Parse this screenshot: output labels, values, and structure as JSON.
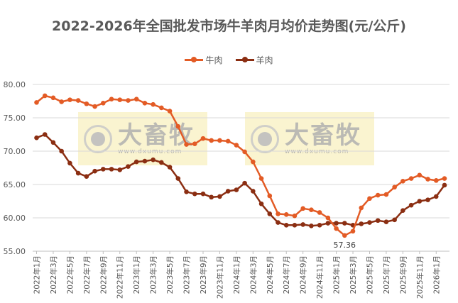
{
  "chart_data": {
    "type": "line",
    "title": "2022-2026年全国批发市场牛羊肉月均价走势图(元/公斤)",
    "xlabel": "",
    "ylabel": "",
    "ylim": [
      55,
      80
    ],
    "yticks": [
      "80.00",
      "75.00",
      "70.00",
      "65.00",
      "60.00",
      "55.00"
    ],
    "grid": true,
    "legend_position": "top",
    "x": [
      "2022年1月",
      "2022年2月",
      "2022年3月",
      "2022年4月",
      "2022年5月",
      "2022年6月",
      "2022年7月",
      "2022年8月",
      "2022年9月",
      "2022年10月",
      "2022年11月",
      "2022年12月",
      "2023年1月",
      "2023年2月",
      "2023年3月",
      "2023年4月",
      "2023年5月",
      "2023年6月",
      "2023年7月",
      "2023年8月",
      "2023年9月",
      "2023年10月",
      "2023年11月",
      "2023年12月",
      "2024年1月",
      "2024年2月",
      "2024年3月",
      "2024年4月",
      "2024年5月",
      "2024年6月",
      "2024年7月",
      "2024年8月",
      "2024年9月",
      "2024年10月",
      "2024年11月",
      "2024年12月",
      "2025年1月",
      "2025年2月",
      "2025年3月",
      "2025年4月",
      "2025年5月",
      "2025年6月",
      "2025年7月",
      "2025年8月",
      "2025年9月",
      "2025年10月",
      "2025年11月",
      "2025年12月",
      "2026年1月",
      "2026年2月"
    ],
    "xtick_labels": [
      "2022年1月",
      "2022年3月",
      "2022年5月",
      "2022年7月",
      "2022年9月",
      "2022年11月",
      "2023年1月",
      "2023年3月",
      "2023年5月",
      "2023年7月",
      "2023年9月",
      "2023年11月",
      "2024年1月",
      "2024年3月",
      "2024年5月",
      "2024年7月",
      "2024年9月",
      "2024年11月",
      "2025年1月",
      "2025年3月",
      "2025年5月",
      "2025年7月",
      "2025年9月",
      "2025年11月",
      "2026年1月"
    ],
    "series": [
      {
        "name": "牛肉",
        "color": "#E35B25",
        "values": [
          77.3,
          78.3,
          78.0,
          77.4,
          77.7,
          77.6,
          77.1,
          76.7,
          77.2,
          77.8,
          77.7,
          77.6,
          77.8,
          77.2,
          77.0,
          76.5,
          76.0,
          73.7,
          71.0,
          71.1,
          71.9,
          71.6,
          71.6,
          71.5,
          70.9,
          69.9,
          68.4,
          65.9,
          63.3,
          60.6,
          60.5,
          60.3,
          61.4,
          61.2,
          60.8,
          60.0,
          58.4,
          57.36,
          58.0,
          61.5,
          62.9,
          63.4,
          63.5,
          64.6,
          65.5,
          65.9,
          66.4,
          65.8,
          65.6,
          65.9
        ]
      },
      {
        "name": "羊肉",
        "color": "#8B2E12",
        "values": [
          72.0,
          72.5,
          71.3,
          70.0,
          68.2,
          66.7,
          66.2,
          67.0,
          67.3,
          67.3,
          67.2,
          67.7,
          68.4,
          68.5,
          68.7,
          68.3,
          67.6,
          65.9,
          63.9,
          63.6,
          63.6,
          63.1,
          63.2,
          64.0,
          64.2,
          65.2,
          64.0,
          62.1,
          60.6,
          59.3,
          58.9,
          58.9,
          59.0,
          58.8,
          58.9,
          59.2,
          59.2,
          59.2,
          58.9,
          59.1,
          59.3,
          59.6,
          59.4,
          59.7,
          61.1,
          61.9,
          62.5,
          62.7,
          63.2,
          64.9
        ]
      }
    ],
    "annotations": [
      {
        "series": "牛肉",
        "x": "2025年2月",
        "text": "57.36"
      }
    ]
  },
  "watermark": {
    "brand": "大畜牧",
    "url": "www.dxumu.com"
  }
}
